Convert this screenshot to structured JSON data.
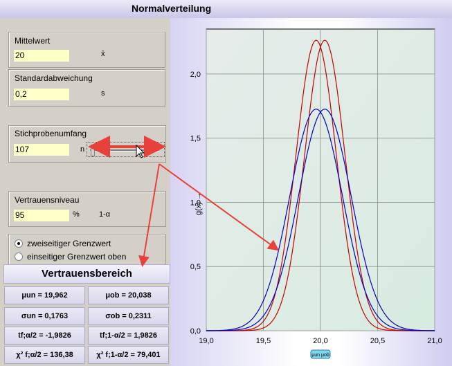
{
  "window": {
    "title": "Normalverteilung"
  },
  "inputs": {
    "mittelwert": {
      "label": "Mittelwert",
      "value": "20",
      "symbol": "x̄"
    },
    "standardabweichung": {
      "label": "Standardabweichung",
      "value": "0,2",
      "symbol": "s"
    },
    "stichprobenumfang": {
      "label": "Stichprobenumfang",
      "value": "107",
      "symbol": "n"
    },
    "vertrauensniveau": {
      "label": "Vertrauensniveau",
      "value": "95",
      "unit": "%",
      "symbol": "1-α"
    }
  },
  "options": {
    "items": [
      {
        "label": "zweiseitiger Grenzwert",
        "selected": true
      },
      {
        "label": "einseitiger Grenzwert oben",
        "selected": false
      }
    ]
  },
  "result": {
    "title": "Vertrauensbereich",
    "cells": [
      "μun = 19,962",
      "μob = 20,038",
      "σun = 0,1763",
      "σob = 0,2311",
      "tf;α/2 = -1,9826",
      "tf;1-α/2 = 1,9826",
      "χ² f;α/2 = 136,38",
      "χ² f;1-α/2 = 79,401"
    ]
  },
  "chart_data": {
    "type": "line",
    "ylabel": "g(x) →",
    "xlim": [
      19.0,
      21.0
    ],
    "ylim": [
      0.0,
      2.35
    ],
    "x_ticks": [
      "19,0",
      "19,5",
      "20,0",
      "20,5",
      "21,0"
    ],
    "y_ticks": [
      "0,0",
      "0,5",
      "1,0",
      "1,5",
      "2,0"
    ],
    "marker_label": "μun μob",
    "series": [
      {
        "color": "#c00000",
        "mean": 19.962,
        "sd": 0.1763
      },
      {
        "color": "#c00000",
        "mean": 20.038,
        "sd": 0.1763
      },
      {
        "color": "#0000c0",
        "mean": 19.962,
        "sd": 0.2311
      },
      {
        "color": "#0000c0",
        "mean": 20.038,
        "sd": 0.2311
      }
    ]
  }
}
